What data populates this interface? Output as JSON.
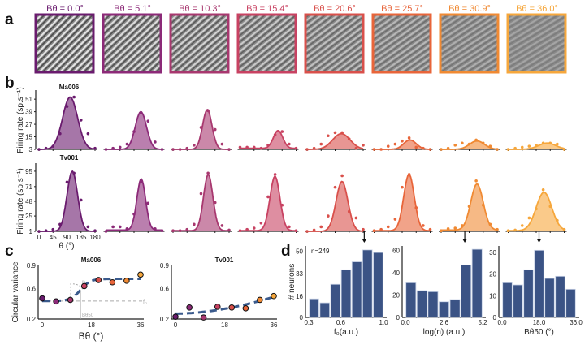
{
  "colors": [
    "#6a1b6e",
    "#8c2a78",
    "#a8386f",
    "#c84262",
    "#d9504b",
    "#e8653a",
    "#f08a33",
    "#f6a73c"
  ],
  "panel_labels": {
    "a": "a",
    "b": "b",
    "c": "c",
    "d": "d"
  },
  "panel_a": {
    "stimuli": [
      "Bθ = 0.0°",
      "Bθ = 5.1°",
      "Bθ = 10.3°",
      "Bθ = 15.4°",
      "Bθ = 20.6°",
      "Bθ = 25.7°",
      "Bθ = 30.9°",
      "Bθ = 36.0°"
    ]
  },
  "chart_data": [
    {
      "id": "b",
      "type": "line",
      "ylabel": "Firing rate (sp.s⁻¹)",
      "xlabel": "θ (°)",
      "x": [
        0,
        22.5,
        45,
        67.5,
        90,
        112.5,
        135,
        157.5,
        180
      ],
      "xticks": [
        "0",
        "45",
        "90",
        "135",
        "180"
      ],
      "rows": [
        {
          "title": "Ma006",
          "yticks": [
            "3",
            "15",
            "27",
            "39",
            "51"
          ],
          "ylim": [
            3,
            55
          ],
          "fits": [
            [
              50,
              100,
              24,
              3
            ],
            [
              36,
              112,
              18,
              3
            ],
            [
              38,
              110,
              15,
              3
            ],
            [
              17,
              122,
              15,
              4
            ],
            [
              15,
              110,
              28,
              3
            ],
            [
              9,
              115,
              20,
              3
            ],
            [
              8,
              115,
              24,
              3
            ],
            [
              6,
              125,
              28,
              3
            ]
          ],
          "points": [
            [
              3,
              4,
              6,
              18,
              44,
              53,
              31,
              18,
              4
            ],
            [
              3,
              4,
              5,
              8,
              20,
              38,
              30,
              10,
              3
            ],
            [
              3,
              3,
              4,
              7,
              24,
              40,
              22,
              8,
              3
            ],
            [
              5,
              5,
              5,
              4,
              7,
              17,
              20,
              8,
              4
            ],
            [
              3,
              4,
              8,
              16,
              19,
              19,
              13,
              4,
              7
            ],
            [
              3,
              3,
              6,
              8,
              11,
              14,
              5,
              4,
              3
            ],
            [
              3,
              4,
              7,
              9,
              8,
              12,
              9,
              6,
              3
            ],
            [
              3,
              4,
              5,
              6,
              7,
              9,
              9,
              8,
              3
            ]
          ]
        },
        {
          "title": "Tv001",
          "yticks": [
            "1",
            "25",
            "48",
            "71",
            "95"
          ],
          "ylim": [
            1,
            100
          ],
          "fits": [
            [
              94,
              107,
              17,
              1
            ],
            [
              80,
              113,
              14,
              3
            ],
            [
              88,
              113,
              15,
              2
            ],
            [
              85,
              112,
              16,
              2
            ],
            [
              78,
              112,
              19,
              1
            ],
            [
              88,
              112,
              17,
              2
            ],
            [
              72,
              115,
              20,
              3
            ],
            [
              60,
              115,
              25,
              2
            ]
          ],
          "points": [
            [
              1,
              2,
              4,
              12,
              78,
              92,
              50,
              8,
              2
            ],
            [
              1,
              8,
              8,
              5,
              28,
              78,
              45,
              5,
              2
            ],
            [
              2,
              2,
              4,
              12,
              60,
              92,
              46,
              10,
              3
            ],
            [
              2,
              4,
              6,
              14,
              55,
              90,
              42,
              8,
              2
            ],
            [
              1,
              3,
              8,
              25,
              70,
              88,
              32,
              22,
              4
            ],
            [
              2,
              4,
              8,
              20,
              70,
              90,
              38,
              10,
              4
            ],
            [
              2,
              5,
              6,
              10,
              40,
              80,
              42,
              12,
              4
            ],
            [
              2,
              3,
              10,
              22,
              36,
              66,
              40,
              18,
              4
            ]
          ]
        }
      ]
    },
    {
      "id": "c",
      "type": "scatter",
      "ylabel": "Circular variance",
      "xlabel": "Bθ (°)",
      "ylim": [
        0.2,
        0.9
      ],
      "yticks": [
        "0.2",
        "0.6",
        "0.9"
      ],
      "xticks": [
        "0",
        "18",
        "36"
      ],
      "x": [
        0,
        5.1,
        10.3,
        15.4,
        20.6,
        25.7,
        30.9,
        36.0
      ],
      "plots": [
        {
          "title": "Ma006",
          "y": [
            0.47,
            0.43,
            0.45,
            0.63,
            0.71,
            0.68,
            0.7,
            0.78
          ],
          "fit": "sigmoid",
          "annotations": [
            "n",
            "f₀",
            "Bθ50"
          ]
        },
        {
          "title": "Tv001",
          "y": [
            0.23,
            0.35,
            0.22,
            0.36,
            0.35,
            0.34,
            0.45,
            0.5
          ],
          "fit": "increasing"
        }
      ]
    },
    {
      "id": "d",
      "type": "bar",
      "ylabel": "# neurons",
      "n_label": "n=249",
      "hists": [
        {
          "xlabel": "f₀(a.u.)",
          "xlim": [
            0.3,
            1.0
          ],
          "xticks": [
            "0.3",
            "0.6",
            "1.0"
          ],
          "yticks": [
            "0",
            "16",
            "33",
            "50"
          ],
          "ymax": 54,
          "values": [
            14,
            11,
            25,
            36,
            42,
            51,
            49
          ],
          "median": 0.82
        },
        {
          "xlabel": "log(n) (a.u.)",
          "xlim": [
            0,
            5.2
          ],
          "xticks": [
            "0.0",
            "2.6",
            "5.2"
          ],
          "yticks": [
            "0",
            "20",
            "40",
            "60"
          ],
          "ymax": 64,
          "values": [
            31,
            24,
            23,
            14,
            16,
            47,
            61
          ],
          "median": 4.0
        },
        {
          "xlabel": "Bθ50 (°)",
          "xlim": [
            0,
            36
          ],
          "xticks": [
            "0.0",
            "18.0",
            "36.0"
          ],
          "yticks": [
            "0",
            "10",
            "20",
            "30"
          ],
          "ymax": 33,
          "values": [
            16,
            15,
            22,
            31,
            18,
            19,
            13
          ],
          "median": 18.0
        }
      ]
    }
  ]
}
